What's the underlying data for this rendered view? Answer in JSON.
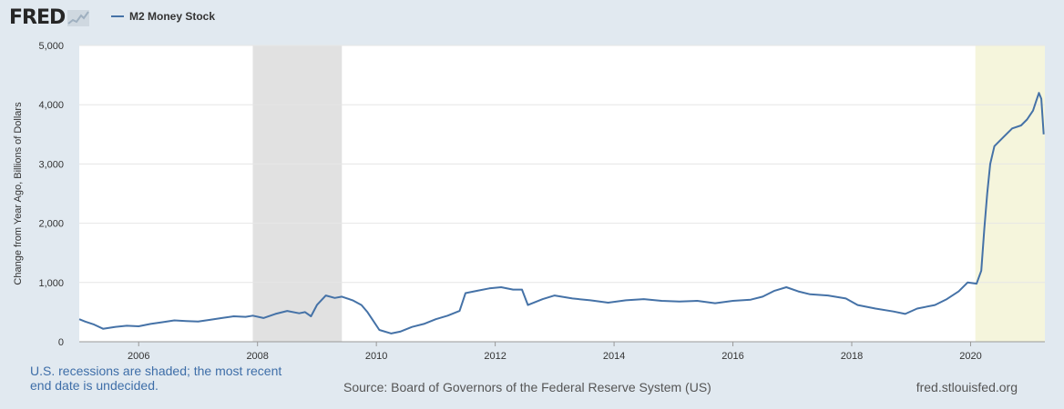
{
  "header": {
    "logo_text": "FRED",
    "legend_label": "M2 Money Stock"
  },
  "colors": {
    "page_background": "#e1e9f0",
    "plot_background": "#ffffff",
    "series_line": "#4572a7",
    "recession_shade": "#e1e1e1",
    "undecided_shade": "#f5f5dc",
    "note_text": "#3e6ea8"
  },
  "footer": {
    "note": "U.S. recessions are shaded; the most recent end date is undecided.",
    "source": "Source: Board of Governors of the Federal Reserve System (US)",
    "url": "fred.stlouisfed.org"
  },
  "chart_data": {
    "type": "line",
    "title": "",
    "xlabel": "",
    "ylabel": "Change from Year Ago, Billions of Dollars",
    "xlim": [
      2005.0,
      2021.25
    ],
    "ylim": [
      0,
      5000
    ],
    "x_ticks": [
      2006,
      2008,
      2010,
      2012,
      2014,
      2016,
      2018,
      2020
    ],
    "y_ticks": [
      0,
      1000,
      2000,
      3000,
      4000,
      5000
    ],
    "y_tick_labels": [
      "0",
      "1,000",
      "2,000",
      "3,000",
      "4,000",
      "5,000"
    ],
    "grid": "horizontal",
    "legend_position": "top-left",
    "shaded_periods": [
      {
        "kind": "recession",
        "start": 2007.92,
        "end": 2009.42
      },
      {
        "kind": "recession-undecided",
        "start": 2020.08,
        "end": 2021.25
      }
    ],
    "series": [
      {
        "name": "M2 Money Stock",
        "points": [
          [
            2005.0,
            380
          ],
          [
            2005.1,
            340
          ],
          [
            2005.25,
            290
          ],
          [
            2005.4,
            220
          ],
          [
            2005.6,
            250
          ],
          [
            2005.8,
            270
          ],
          [
            2006.0,
            260
          ],
          [
            2006.2,
            300
          ],
          [
            2006.4,
            330
          ],
          [
            2006.6,
            360
          ],
          [
            2006.8,
            350
          ],
          [
            2007.0,
            340
          ],
          [
            2007.2,
            370
          ],
          [
            2007.4,
            400
          ],
          [
            2007.6,
            430
          ],
          [
            2007.8,
            420
          ],
          [
            2007.92,
            440
          ],
          [
            2008.1,
            400
          ],
          [
            2008.3,
            470
          ],
          [
            2008.5,
            520
          ],
          [
            2008.7,
            480
          ],
          [
            2008.8,
            500
          ],
          [
            2008.9,
            430
          ],
          [
            2009.0,
            620
          ],
          [
            2009.15,
            780
          ],
          [
            2009.3,
            740
          ],
          [
            2009.42,
            760
          ],
          [
            2009.6,
            700
          ],
          [
            2009.75,
            620
          ],
          [
            2009.85,
            500
          ],
          [
            2009.95,
            350
          ],
          [
            2010.05,
            200
          ],
          [
            2010.25,
            140
          ],
          [
            2010.4,
            170
          ],
          [
            2010.6,
            250
          ],
          [
            2010.8,
            300
          ],
          [
            2011.0,
            380
          ],
          [
            2011.2,
            440
          ],
          [
            2011.4,
            520
          ],
          [
            2011.5,
            820
          ],
          [
            2011.7,
            860
          ],
          [
            2011.9,
            900
          ],
          [
            2012.1,
            920
          ],
          [
            2012.3,
            880
          ],
          [
            2012.45,
            880
          ],
          [
            2012.55,
            620
          ],
          [
            2012.8,
            720
          ],
          [
            2013.0,
            780
          ],
          [
            2013.3,
            730
          ],
          [
            2013.6,
            700
          ],
          [
            2013.9,
            660
          ],
          [
            2014.2,
            700
          ],
          [
            2014.5,
            720
          ],
          [
            2014.8,
            690
          ],
          [
            2015.1,
            680
          ],
          [
            2015.4,
            690
          ],
          [
            2015.7,
            650
          ],
          [
            2016.0,
            690
          ],
          [
            2016.3,
            710
          ],
          [
            2016.5,
            760
          ],
          [
            2016.7,
            860
          ],
          [
            2016.9,
            920
          ],
          [
            2017.1,
            850
          ],
          [
            2017.3,
            800
          ],
          [
            2017.6,
            780
          ],
          [
            2017.9,
            730
          ],
          [
            2018.1,
            620
          ],
          [
            2018.4,
            560
          ],
          [
            2018.7,
            510
          ],
          [
            2018.9,
            470
          ],
          [
            2019.1,
            560
          ],
          [
            2019.4,
            620
          ],
          [
            2019.6,
            720
          ],
          [
            2019.8,
            850
          ],
          [
            2019.95,
            1000
          ],
          [
            2020.1,
            980
          ],
          [
            2020.18,
            1200
          ],
          [
            2020.23,
            1900
          ],
          [
            2020.28,
            2500
          ],
          [
            2020.33,
            3000
          ],
          [
            2020.4,
            3300
          ],
          [
            2020.55,
            3450
          ],
          [
            2020.7,
            3600
          ],
          [
            2020.85,
            3650
          ],
          [
            2020.95,
            3750
          ],
          [
            2021.05,
            3900
          ],
          [
            2021.1,
            4050
          ],
          [
            2021.15,
            4200
          ],
          [
            2021.19,
            4100
          ],
          [
            2021.23,
            3500
          ]
        ]
      }
    ]
  }
}
